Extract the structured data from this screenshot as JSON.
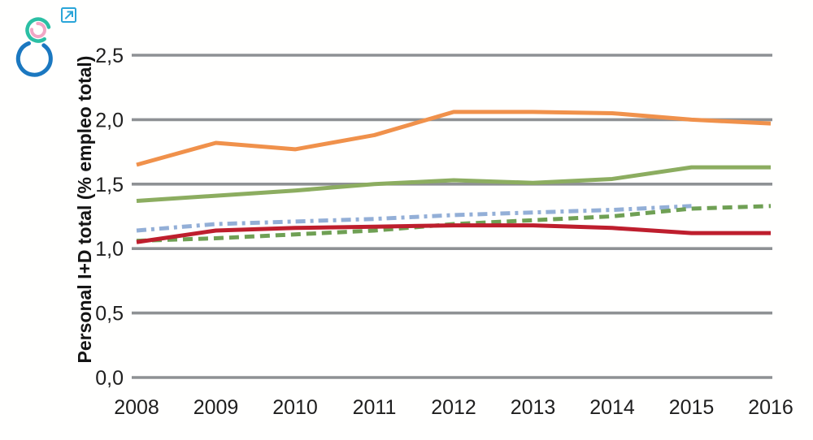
{
  "page": {
    "background": "#ffffff"
  },
  "header": {
    "logo": {
      "name": "concentric-arcs-logo",
      "outer_color": "#1b78c0",
      "middle_color": "#2bbfa4",
      "inner_color": "#f2a6c5"
    },
    "external_link_icon_color": "#2aa5d8"
  },
  "chart_data": {
    "type": "line",
    "title": "",
    "xlabel": "",
    "ylabel": "Personal I+D total (% empleo total)",
    "categories": [
      "2008",
      "2009",
      "2010",
      "2011",
      "2012",
      "2013",
      "2014",
      "2015",
      "2016"
    ],
    "ylim": [
      0,
      2.5
    ],
    "grid": "horizontal-only",
    "gridline_color": "#8e9194",
    "legend_position": "none",
    "y_ticks": [
      {
        "value": 2.5,
        "label": "2,5"
      },
      {
        "value": 2.0,
        "label": "2,0"
      },
      {
        "value": 1.5,
        "label": "1,5"
      },
      {
        "value": 1.0,
        "label": "1,0"
      },
      {
        "value": 0.5,
        "label": "0,5"
      },
      {
        "value": 0.0,
        "label": "0,0"
      }
    ],
    "series": [
      {
        "name": "orange-solid-line",
        "color": "#f0914b",
        "style": "solid",
        "values": [
          1.65,
          1.82,
          1.77,
          1.88,
          2.06,
          2.06,
          2.05,
          2.0,
          1.97
        ]
      },
      {
        "name": "green-solid-line",
        "color": "#8cad60",
        "style": "solid",
        "values": [
          1.37,
          1.41,
          1.45,
          1.5,
          1.53,
          1.51,
          1.54,
          1.63,
          1.63
        ]
      },
      {
        "name": "blue-dash-dot-line",
        "color": "#93afd7",
        "style": "dash-dot",
        "values": [
          1.14,
          1.19,
          1.21,
          1.23,
          1.26,
          1.28,
          1.3,
          1.33,
          null
        ]
      },
      {
        "name": "green-dashed-line",
        "color": "#6fa054",
        "style": "dashed",
        "values": [
          1.06,
          1.08,
          1.11,
          1.14,
          1.19,
          1.22,
          1.25,
          1.31,
          1.33
        ]
      },
      {
        "name": "red-solid-line",
        "color": "#be1e2d",
        "style": "solid",
        "values": [
          1.05,
          1.14,
          1.16,
          1.17,
          1.18,
          1.18,
          1.16,
          1.12,
          1.12
        ]
      }
    ]
  }
}
